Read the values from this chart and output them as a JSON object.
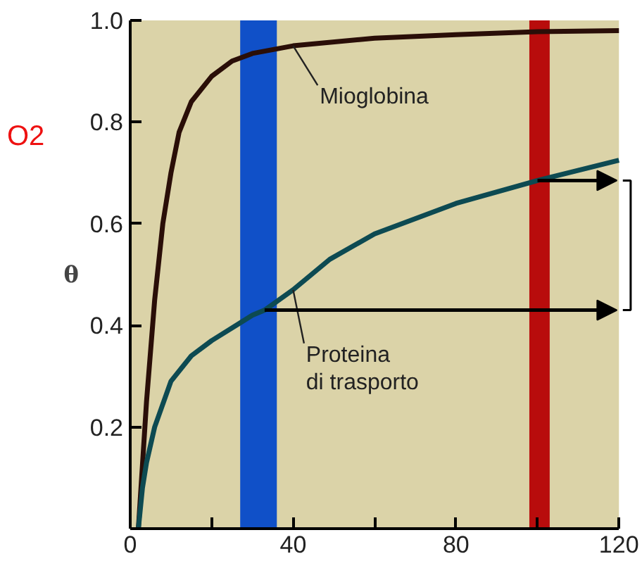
{
  "chart_data": {
    "type": "line",
    "ylabel": "θ",
    "annotations": [
      "O2"
    ],
    "xlim": [
      0,
      120
    ],
    "ylim": [
      0,
      1.0
    ],
    "xticks": [
      0,
      {
        "value": 20,
        "label": null
      },
      40,
      {
        "value": 60,
        "label": null
      },
      80,
      {
        "value": 100,
        "label": null
      },
      120
    ],
    "yticks": [
      {
        "value": 0,
        "label": null
      },
      0.2,
      0.4,
      0.6,
      0.8,
      {
        "value": 1.0,
        "label": "1.0"
      }
    ],
    "series": [
      {
        "name": "Mioglobina",
        "color": "#2a0e08",
        "x": [
          2,
          4,
          6,
          8,
          10,
          12,
          15,
          20,
          25,
          30,
          40,
          60,
          80,
          100,
          120
        ],
        "values": [
          0,
          0.25,
          0.45,
          0.6,
          0.7,
          0.78,
          0.84,
          0.89,
          0.92,
          0.935,
          0.95,
          0.965,
          0.972,
          0.978,
          0.98
        ]
      },
      {
        "name": "Proteina di trasporto",
        "color": "#0d4a52",
        "x": [
          2,
          3,
          4,
          6,
          10,
          15,
          20,
          26,
          30,
          33,
          40,
          49,
          60,
          80,
          100,
          120
        ],
        "values": [
          0,
          0.08,
          0.13,
          0.2,
          0.29,
          0.34,
          0.37,
          0.4,
          0.42,
          0.43,
          0.47,
          0.53,
          0.58,
          0.64,
          0.685,
          0.725
        ]
      }
    ],
    "bands": [
      {
        "axis": "x",
        "from": 27,
        "to": 36,
        "color": "#1050c8"
      },
      {
        "axis": "x",
        "from": 98,
        "to": 103,
        "color": "#b80c0c"
      }
    ],
    "grid": false,
    "legend": false,
    "marker": "none",
    "line_style": "solid"
  }
}
